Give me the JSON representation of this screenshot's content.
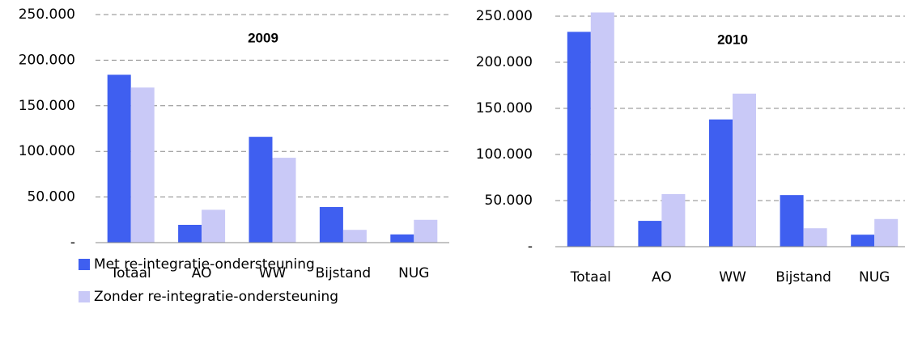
{
  "chart_data": [
    {
      "type": "bar",
      "title": "2009",
      "categories": [
        "Totaal",
        "AO",
        "WW",
        "Bijstand",
        "NUG"
      ],
      "series": [
        {
          "name": "Met re-integratie-ondersteuning",
          "color": "#3f5ff0",
          "values": [
            184000,
            19500,
            116000,
            39000,
            9000
          ]
        },
        {
          "name": "Zonder re-integratie-ondersteuning",
          "color": "#c9c9f7",
          "values": [
            170000,
            36000,
            93000,
            14000,
            25000
          ]
        }
      ],
      "ylim": [
        0,
        250000
      ],
      "yticks": [
        {
          "value": 0,
          "label": "-"
        },
        {
          "value": 50000,
          "label": "50.000"
        },
        {
          "value": 100000,
          "label": "100.000"
        },
        {
          "value": 150000,
          "label": "150.000"
        },
        {
          "value": 200000,
          "label": "200.000"
        },
        {
          "value": 250000,
          "label": "250.000"
        }
      ],
      "grid": true
    },
    {
      "type": "bar",
      "title": "2010",
      "categories": [
        "Totaal",
        "AO",
        "WW",
        "Bijstand",
        "NUG"
      ],
      "series": [
        {
          "color": "#3f5ff0",
          "values": [
            233000,
            28000,
            138000,
            56000,
            13000
          ]
        },
        {
          "color": "#c9c9f7",
          "values": [
            254000,
            57000,
            166000,
            20000,
            30000
          ]
        }
      ],
      "ylim": [
        0,
        250000
      ],
      "yticks": [
        {
          "value": 0,
          "label": "-"
        },
        {
          "value": 50000,
          "label": "50.000"
        },
        {
          "value": 100000,
          "label": "100.000"
        },
        {
          "value": 150000,
          "label": "150.000"
        },
        {
          "value": 200000,
          "label": "200.000"
        },
        {
          "value": 250000,
          "label": "250.000"
        }
      ],
      "grid": true
    }
  ]
}
